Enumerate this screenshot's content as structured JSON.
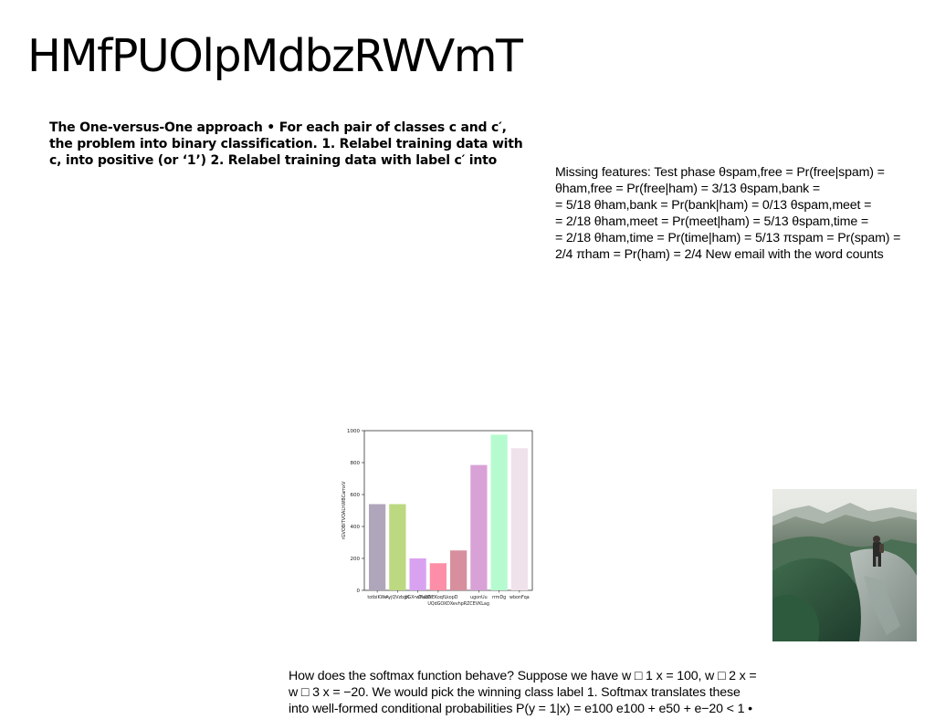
{
  "title": "HMfPUOlpMdbzRWVmT",
  "text_blocks": {
    "bold_block": {
      "lines": [
        "The One-versus-One approach • For each pair of classes c and c′,",
        "the problem into binary classification. 1. Relabel training data with",
        "c, into positive (or ‘1’) 2. Relabel training data with label c′ into"
      ]
    },
    "right_block": {
      "lines": [
        "Missing features: Test phase θspam,free = Pr(free|spam) =",
        "θham,free = Pr(free|ham) = 3/13 θspam,bank =",
        "= 5/18 θham,bank = Pr(bank|ham) = 0/13 θspam,meet =",
        "= 2/18 θham,meet = Pr(meet|ham) = 5/13 θspam,time =",
        "= 2/18 θham,time = Pr(time|ham) = 5/13 πspam = Pr(spam) =",
        "2/4 πham = Pr(ham) = 2/4 New email with the word counts"
      ]
    },
    "bottom_block": {
      "lines": [
        "How does the softmax function behave? Suppose we have w □ 1 x = 100, w □ 2 x =",
        "w □ 3 x = −20. We would pick the winning class label 1. Softmax translates these",
        "into well-formed conditional probabilities P(y = 1|x) = e100 e100 + e50 + e−20 < 1 •"
      ]
    }
  },
  "chart_data": {
    "type": "bar",
    "categories": [
      "totbiKWe",
      "AyjQVzbgX",
      "bGXrwYsUD",
      "DlabNEKoqfLkopD",
      "UQdGOXDXevhpRZCEVKLag",
      "ugonUu",
      "rrmDg",
      "wbonFqa"
    ],
    "tick_labels": [
      "totbiKWe",
      "AyjQVzbgX",
      "bGXrwYsUD",
      "DlabNEKoqfLkopD",
      "ugonUu",
      "rrmDg",
      "wbonFqa"
    ],
    "xlabel_line2": "UQdGOXDXevhpRZCEVKLag",
    "values": [
      540,
      540,
      200,
      170,
      250,
      785,
      975,
      890
    ],
    "colors": [
      "#b0a6bb",
      "#bcd880",
      "#d9a2f1",
      "#fc8fa7",
      "#d78f9d",
      "#d9a2d6",
      "#b6fbcf",
      "#f0e2ea"
    ],
    "ylabel": "rGVOBITVOALhWBCamxV",
    "ylim": [
      0,
      1000
    ],
    "yticks": [
      "0",
      "200",
      "400",
      "600",
      "800",
      "1000"
    ],
    "grid": false,
    "legend": "none"
  },
  "photo": {
    "description_icon": "hiker-on-mountain-ridge-photo"
  }
}
